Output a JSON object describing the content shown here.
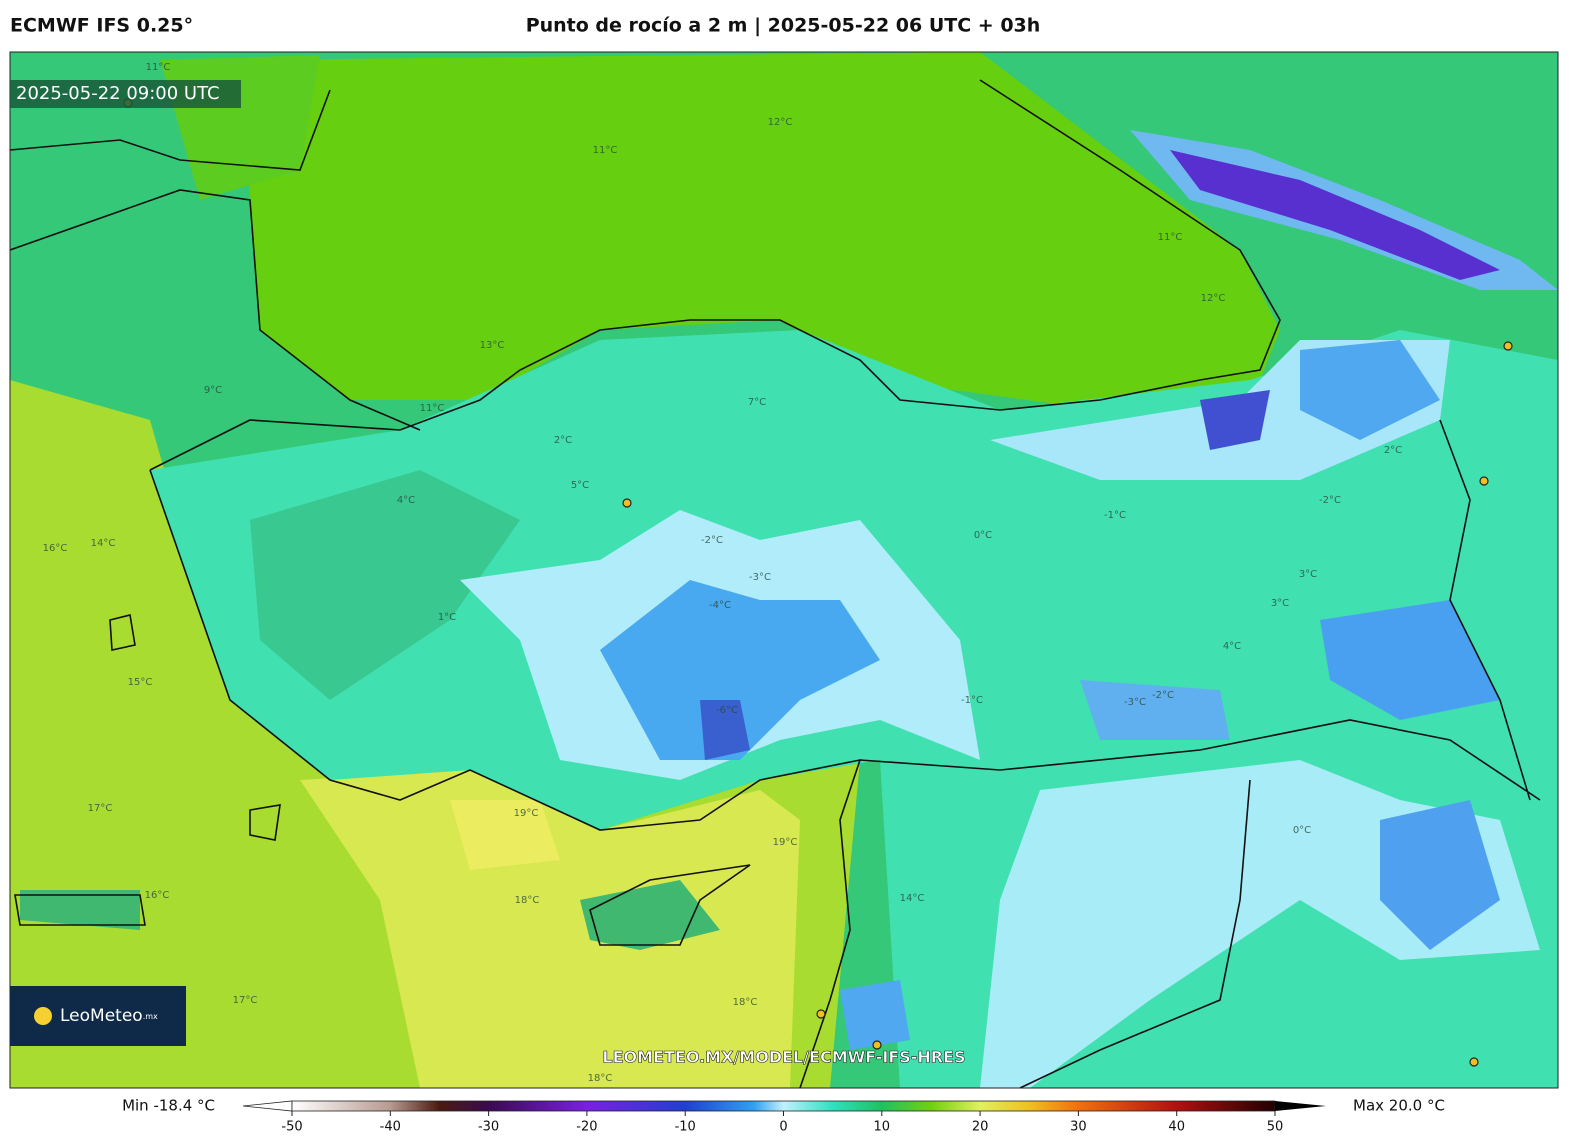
{
  "header": {
    "model": "ECMWF IFS 0.25°",
    "title": "Punto de rocío a 2 m | 2025-05-22 06 UTC + 03h"
  },
  "map": {
    "timestamp": "2025-05-22 09:00 UTC",
    "watermark": "LEOMETEO.MX/MODEL/ECMWF-IFS-HRES",
    "contour_labels": [
      "11°C",
      "11°C",
      "12°C",
      "11°C",
      "12°C",
      "13°C",
      "11°C",
      "9°C",
      "14°C",
      "16°C",
      "15°C",
      "17°C",
      "19°C",
      "19°C",
      "18°C",
      "18°C",
      "17°C",
      "18°C",
      "16°C",
      "2°C",
      "4°C",
      "1°C",
      "-2°C",
      "-3°C",
      "-4°C",
      "-1°C",
      "0°C",
      "3°C",
      "-2°C",
      "5°C",
      "7°C",
      "14°C",
      "-3°C",
      "-2°C",
      "0°C",
      "-6°C",
      "4°C",
      "-1°C",
      "2°C",
      "3°C"
    ]
  },
  "logo": {
    "name": "LeoMeteo",
    "suffix": ".mx"
  },
  "colorbar": {
    "min_label": "Min -18.4 °C",
    "max_label": "Max 20.0 °C",
    "lim": [
      -50,
      50
    ],
    "ticks": [
      -50,
      -40,
      -30,
      -20,
      -10,
      0,
      10,
      20,
      30,
      40,
      50
    ]
  }
}
